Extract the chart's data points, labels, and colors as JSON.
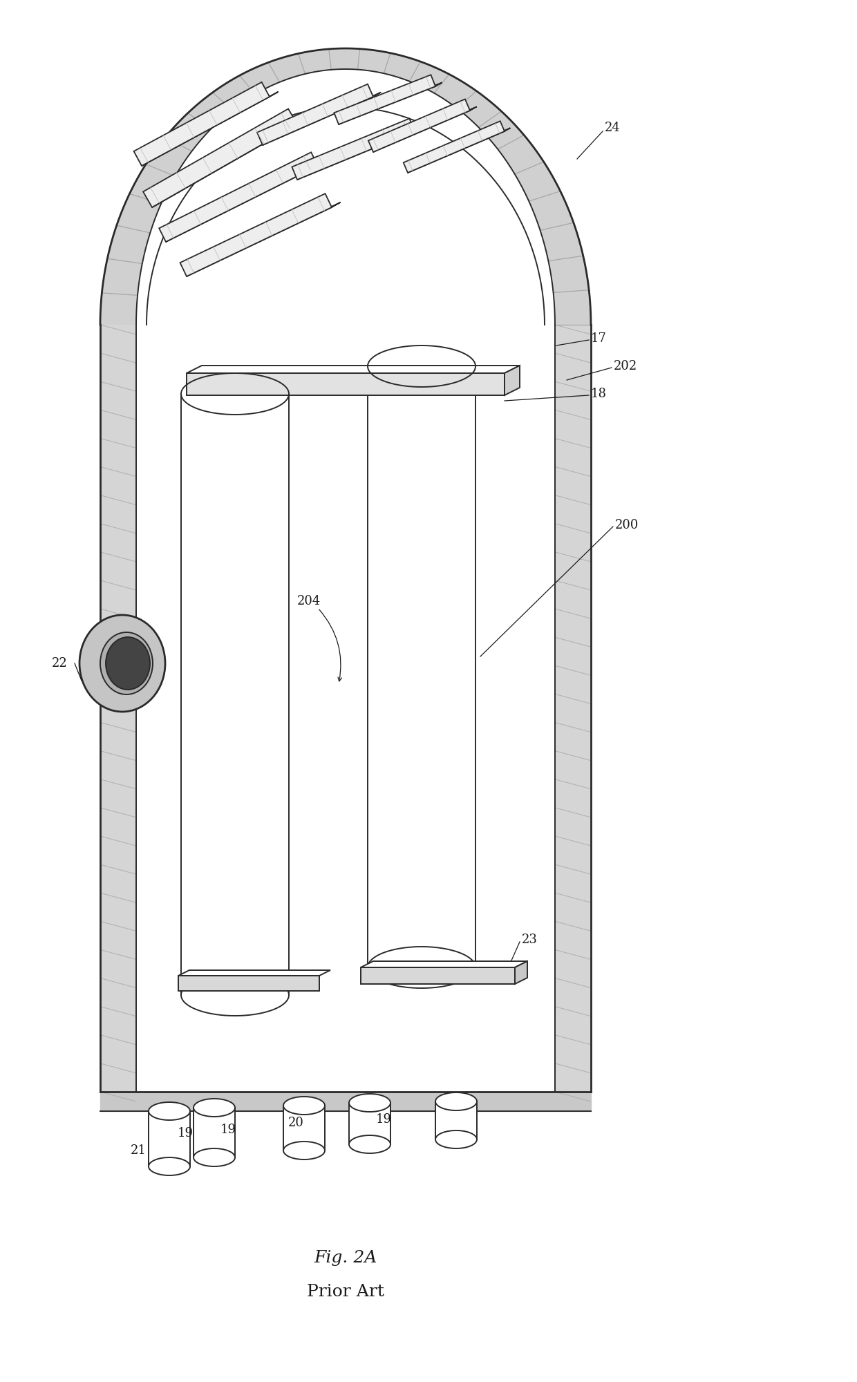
{
  "fig_label": "Fig. 2A",
  "sub_label": "Prior Art",
  "background_color": "#ffffff",
  "line_color": "#2a2a2a",
  "lw_main": 1.4,
  "lw_thick": 2.0,
  "ref_fontsize": 13,
  "fig_fontsize": 18
}
